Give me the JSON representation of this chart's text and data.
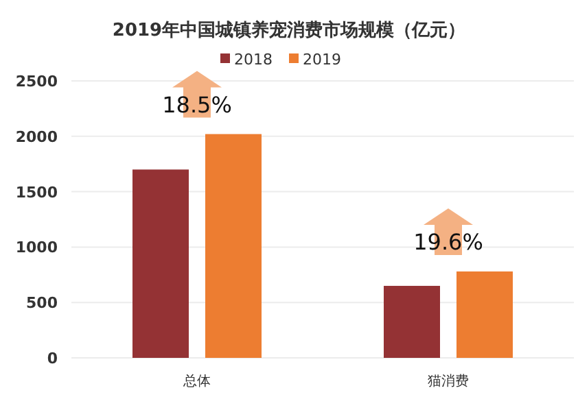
{
  "chart_data": {
    "type": "bar",
    "title": "2019年中国城镇养宠消费市场规模（亿元）",
    "categories": [
      "总体",
      "猫消费"
    ],
    "series": [
      {
        "name": "2018",
        "color": "#943234",
        "values": [
          1700,
          650
        ]
      },
      {
        "name": "2019",
        "color": "#ed7d31",
        "values": [
          2020,
          780
        ]
      }
    ],
    "ylim": [
      0,
      2500
    ],
    "yticks": [
      0,
      500,
      1000,
      1500,
      2000,
      2500
    ],
    "grid": "y",
    "legend": "top",
    "annotations": [
      "18.5%",
      "19.6%"
    ]
  }
}
